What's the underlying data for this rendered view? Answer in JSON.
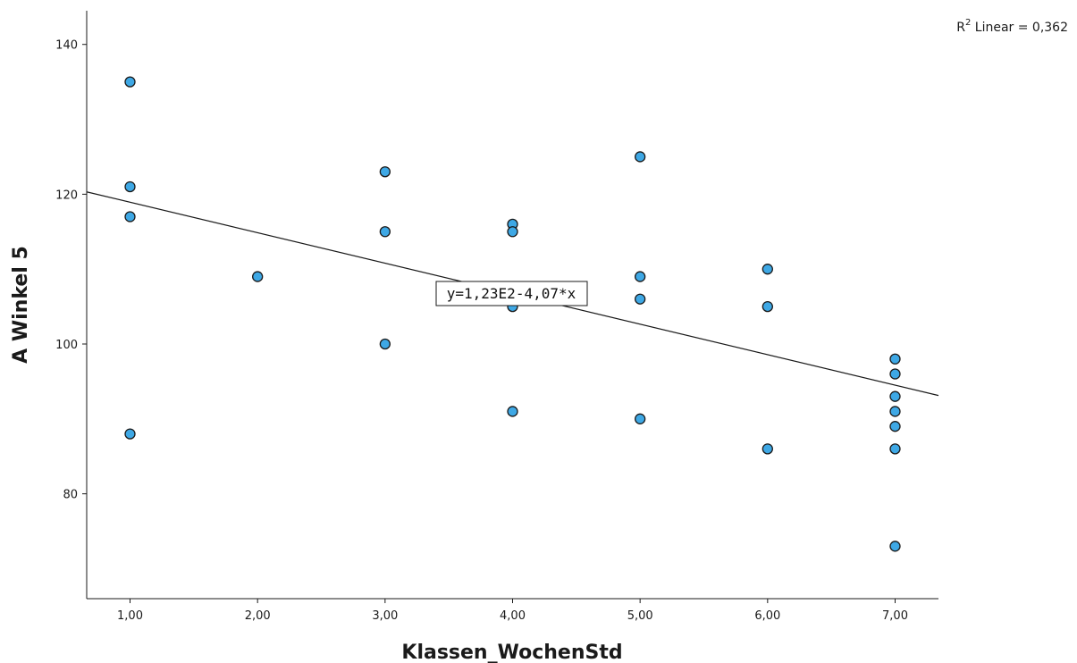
{
  "chart_data": {
    "type": "scatter",
    "xlabel": "Klassen_WochenStd",
    "ylabel": "A Winkel 5",
    "xlim": [
      0.66,
      7.34
    ],
    "ylim": [
      66,
      144.5
    ],
    "x_ticks": [
      1,
      2,
      3,
      4,
      5,
      6,
      7
    ],
    "x_tick_labels": [
      "1,00",
      "2,00",
      "3,00",
      "4,00",
      "5,00",
      "6,00",
      "7,00"
    ],
    "y_ticks": [
      80,
      100,
      120,
      140
    ],
    "y_tick_labels": [
      "80",
      "100",
      "120",
      "140"
    ],
    "grid": false,
    "point_color": "#3ea8e5",
    "point_edge_color": "#1a1a1a",
    "points": [
      {
        "x": 1,
        "y": 135
      },
      {
        "x": 1,
        "y": 121
      },
      {
        "x": 1,
        "y": 117
      },
      {
        "x": 1,
        "y": 88
      },
      {
        "x": 2,
        "y": 109
      },
      {
        "x": 3,
        "y": 123
      },
      {
        "x": 3,
        "y": 115
      },
      {
        "x": 3,
        "y": 100
      },
      {
        "x": 4,
        "y": 116
      },
      {
        "x": 4,
        "y": 115
      },
      {
        "x": 4,
        "y": 105
      },
      {
        "x": 4,
        "y": 91
      },
      {
        "x": 5,
        "y": 125
      },
      {
        "x": 5,
        "y": 109
      },
      {
        "x": 5,
        "y": 106
      },
      {
        "x": 5,
        "y": 90
      },
      {
        "x": 6,
        "y": 110
      },
      {
        "x": 6,
        "y": 105
      },
      {
        "x": 6,
        "y": 86
      },
      {
        "x": 7,
        "y": 98
      },
      {
        "x": 7,
        "y": 96
      },
      {
        "x": 7,
        "y": 93
      },
      {
        "x": 7,
        "y": 91
      },
      {
        "x": 7,
        "y": 89
      },
      {
        "x": 7,
        "y": 86
      },
      {
        "x": 7,
        "y": 73
      }
    ],
    "fit_line": {
      "intercept": 123,
      "slope": -4.07
    },
    "fit_equation": "y=1,23E2-4,07*x",
    "r2_label_prefix": "R",
    "r2_label_sup": "2",
    "r2_label_suffix": " Linear = 0,362"
  }
}
